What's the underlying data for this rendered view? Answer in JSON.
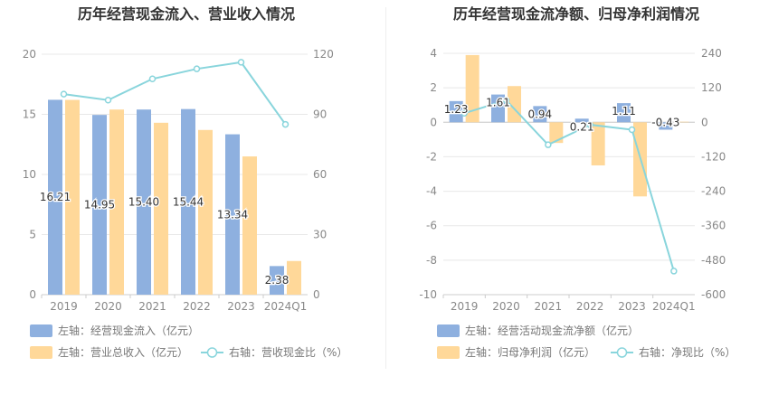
{
  "colors": {
    "bar_blue": "#8eb0df",
    "bar_orange": "#ffd899",
    "line_cyan": "#89d5dc",
    "axis_text": "#888888",
    "grid": "#e8e8e8",
    "title": "#333333",
    "legend_text": "#777777"
  },
  "chart_data": [
    {
      "type": "bar",
      "title": "历年经营现金流入、营业收入情况",
      "categories": [
        "2019",
        "2020",
        "2021",
        "2022",
        "2023",
        "2024Q1"
      ],
      "y_left": {
        "ylim": [
          0,
          20
        ],
        "ticks": [
          "0",
          "5",
          "10",
          "15",
          "20"
        ]
      },
      "y_right": {
        "ylim": [
          0,
          120
        ],
        "ticks": [
          "0",
          "30",
          "60",
          "90",
          "120"
        ]
      },
      "series": [
        {
          "name": "左轴：经营现金流入（亿元）",
          "kind": "bar",
          "axis": "left",
          "color": "#8eb0df",
          "values": [
            16.21,
            14.95,
            15.4,
            15.44,
            13.34,
            2.38
          ],
          "labels": [
            "16.21",
            "14.95",
            "15.40",
            "15.44",
            "13.34",
            "2.38"
          ]
        },
        {
          "name": "左轴：营业总收入（亿元）",
          "kind": "bar",
          "axis": "left",
          "color": "#ffd899",
          "values": [
            16.2,
            15.4,
            14.3,
            13.7,
            11.5,
            2.8
          ]
        },
        {
          "name": "右轴：营收现金比（%）",
          "kind": "line",
          "axis": "right",
          "color": "#89d5dc",
          "values": [
            100.1,
            97.1,
            107.7,
            112.7,
            116.0,
            85.0
          ]
        }
      ],
      "legend": [
        {
          "label": "左轴：经营现金流入（亿元）",
          "kind": "bar",
          "color": "#8eb0df"
        },
        {
          "label": "左轴：营业总收入（亿元）",
          "kind": "bar",
          "color": "#ffd899"
        },
        {
          "label": "右轴：营收现金比（%）",
          "kind": "line",
          "color": "#89d5dc"
        }
      ]
    },
    {
      "type": "bar",
      "title": "历年经营现金流净额、归母净利润情况",
      "categories": [
        "2019",
        "2020",
        "2021",
        "2022",
        "2023",
        "2024Q1"
      ],
      "y_left": {
        "ylim": [
          -10,
          4
        ],
        "ticks": [
          "-10",
          "-8",
          "-6",
          "-4",
          "-2",
          "0",
          "2",
          "4"
        ]
      },
      "y_right": {
        "ylim": [
          -600,
          240
        ],
        "ticks": [
          "-600",
          "-480",
          "-360",
          "-240",
          "-120",
          "0",
          "120",
          "240"
        ]
      },
      "series": [
        {
          "name": "左轴：经营活动现金流净额（亿元）",
          "kind": "bar",
          "axis": "left",
          "color": "#8eb0df",
          "values": [
            1.23,
            1.61,
            0.94,
            0.21,
            1.11,
            -0.43
          ],
          "labels": [
            "1.23",
            "1.61",
            "0.94",
            "0.21",
            "1.11",
            "-0.43"
          ]
        },
        {
          "name": "左轴：归母净利润（亿元）",
          "kind": "bar",
          "axis": "left",
          "color": "#ffd899",
          "values": [
            3.9,
            2.1,
            -1.2,
            -2.5,
            -4.3,
            0.03
          ]
        },
        {
          "name": "右轴：净现比（%）",
          "kind": "line",
          "axis": "right",
          "color": "#89d5dc",
          "values": [
            31.5,
            76.7,
            -78.3,
            -8.4,
            -25.8,
            -518.0
          ]
        }
      ],
      "legend": [
        {
          "label": "左轴：经营活动现金流净额（亿元）",
          "kind": "bar",
          "color": "#8eb0df"
        },
        {
          "label": "左轴：归母净利润（亿元）",
          "kind": "bar",
          "color": "#ffd899"
        },
        {
          "label": "右轴：净现比（%）",
          "kind": "line",
          "color": "#89d5dc"
        }
      ]
    }
  ]
}
